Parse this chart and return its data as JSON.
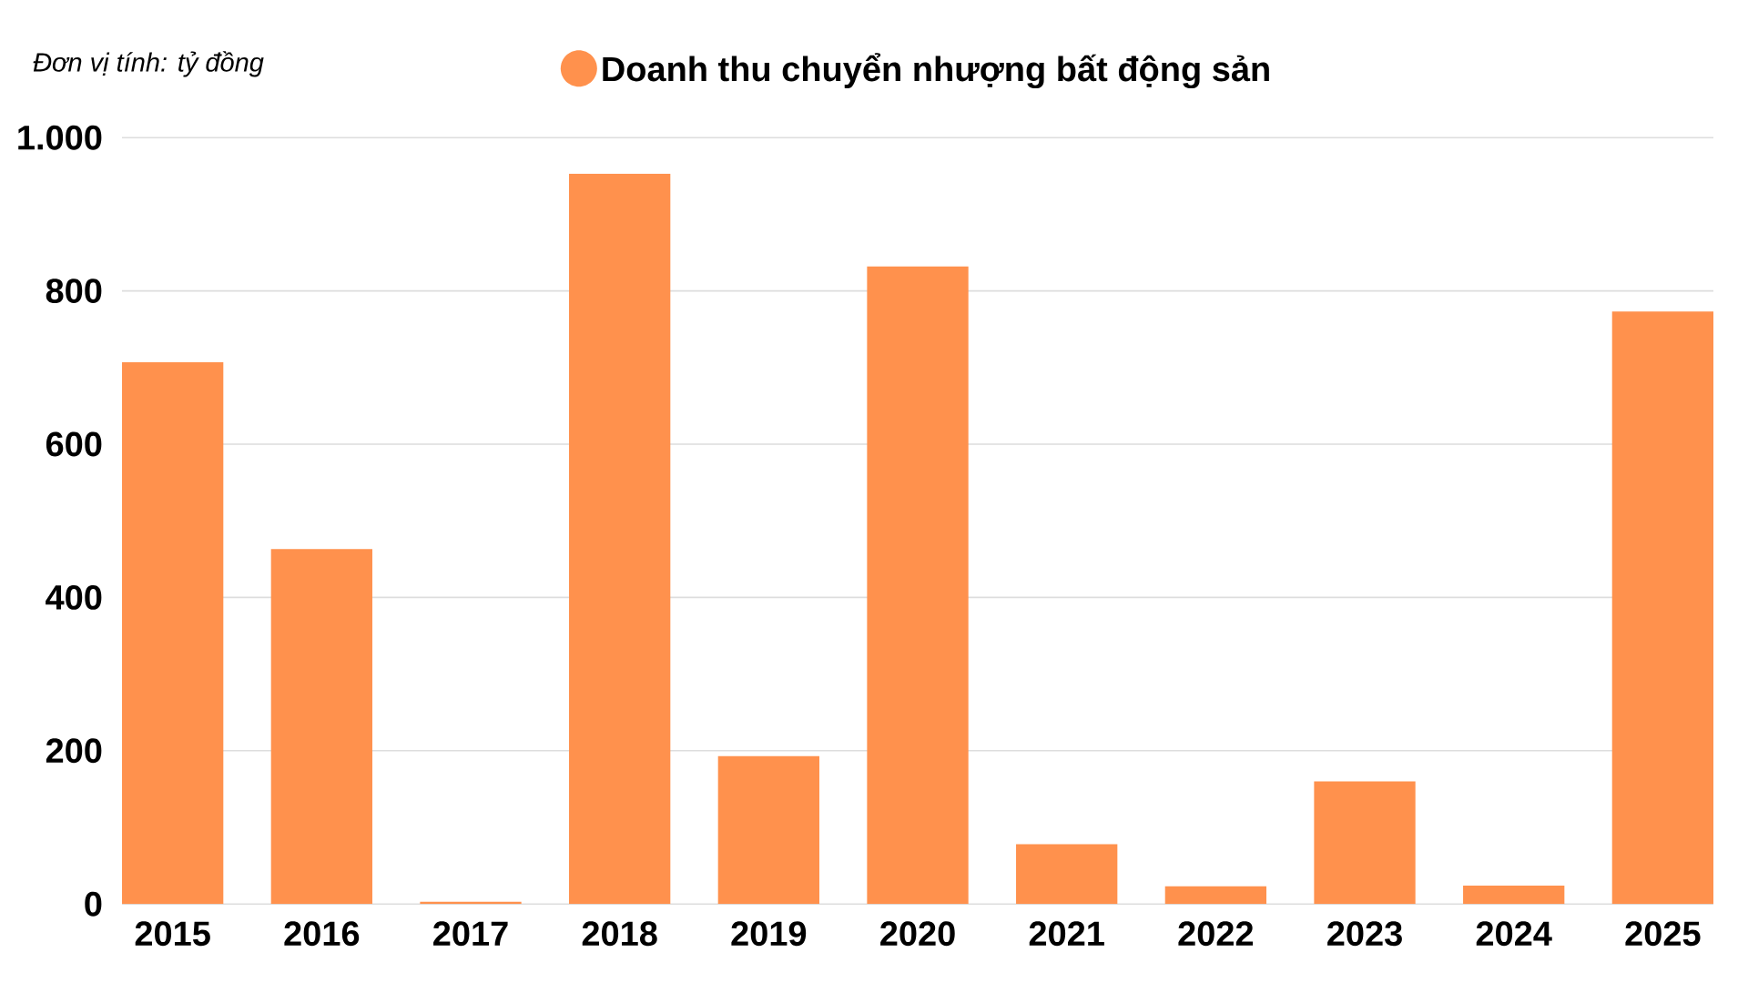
{
  "chart_data": {
    "type": "bar",
    "ylabel": "Đơn vị tính: tỷ đồng",
    "categories": [
      "2015",
      "2016",
      "2017",
      "2018",
      "2019",
      "2020",
      "2021",
      "2022",
      "2023",
      "2024",
      "2025"
    ],
    "series": [
      {
        "name": "Doanh thu chuyển nhượng bất động sản",
        "color": "#ff914d",
        "values": [
          707,
          463,
          3,
          953,
          193,
          832,
          78,
          23,
          160,
          24,
          773
        ]
      }
    ],
    "ylim": [
      0,
      1000
    ],
    "yticks": [
      0,
      200,
      400,
      600,
      800,
      {
        "value": 1000,
        "label": "1.000"
      }
    ],
    "grid": "y",
    "legend": "top"
  }
}
